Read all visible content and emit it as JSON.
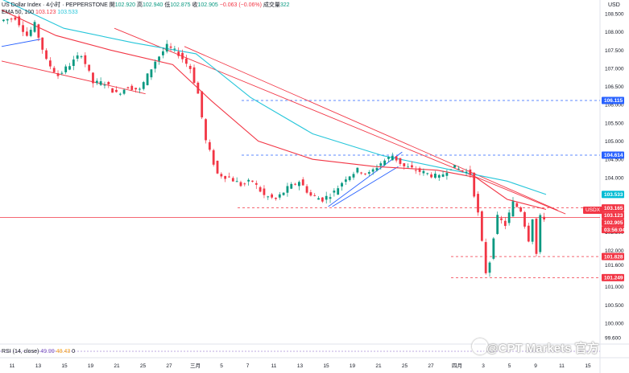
{
  "header": {
    "symbol": "US Dollar Index · 4小时 · PEPPERSTONE",
    "open_label": "開",
    "open": "102.920",
    "high_label": "高",
    "high": "102.940",
    "low_label": "低",
    "low": "102.875",
    "close_label": "收",
    "close": "102.905",
    "change": "−0.063 (−0.06%)",
    "volume_label": "成交量",
    "volume": "322",
    "ema_label": "EMA 50, 100",
    "ema50": "103.123",
    "ema100": "103.533",
    "rsi_label": "RSI (14, close)",
    "rsi_value": "49.99",
    "rsi_ma": "48.43",
    "rsi_zero": "0"
  },
  "axis": {
    "currency": "USD",
    "price_ticks": [
      "108.500",
      "108.000",
      "107.500",
      "107.000",
      "106.500",
      "106.000",
      "105.500",
      "105.000",
      "104.500",
      "104.000",
      "103.500",
      "103.000",
      "102.500",
      "102.000",
      "101.600",
      "101.000",
      "100.500",
      "100.000",
      "99.600"
    ],
    "time_ticks": [
      "11",
      "13",
      "15",
      "19",
      "21",
      "25",
      "27",
      "三月",
      "5",
      "7",
      "11",
      "13",
      "15",
      "19",
      "21",
      "25",
      "27",
      "四月",
      "3",
      "5",
      "9",
      "11",
      "15"
    ]
  },
  "price_tags": [
    {
      "label": "106.115",
      "color": "#2962ff",
      "value": 106.115
    },
    {
      "label": "104.614",
      "color": "#2962ff",
      "value": 104.614
    },
    {
      "label": "103.533",
      "color": "#00bcd4",
      "value": 103.533
    },
    {
      "label": "103.165",
      "color": "#f23645",
      "value": 103.165
    },
    {
      "label": "103.123",
      "color": "#f23645",
      "value": 103.123
    },
    {
      "label": "102.905",
      "color": "#f23645",
      "value": 102.905
    },
    {
      "label": "03:56:04",
      "color": "#f23645",
      "value": 102.905
    },
    {
      "label": "101.828",
      "color": "#f23645",
      "value": 101.828
    },
    {
      "label": "101.249",
      "color": "#f23645",
      "value": 101.249
    }
  ],
  "symbol_tag": "USDX",
  "watermark": "@CPT Markets 官方",
  "colors": {
    "up": "#089981",
    "down": "#f23645",
    "ema50": "#f23645",
    "ema100": "#26c6da",
    "channel": "#2962ff",
    "trend": "#f23645"
  },
  "chart_data": {
    "type": "candlestick",
    "timeframe": "4h",
    "ylim": [
      99.6,
      108.7
    ],
    "price_levels": [
      {
        "value": 106.115,
        "style": "dashed",
        "color": "#2962ff"
      },
      {
        "value": 104.614,
        "style": "dashed",
        "color": "#2962ff"
      },
      {
        "value": 103.165,
        "style": "dashed",
        "color": "#f23645"
      },
      {
        "value": 102.905,
        "style": "solid",
        "color": "#f23645"
      },
      {
        "value": 101.828,
        "style": "dashed",
        "color": "#f23645"
      },
      {
        "value": 101.249,
        "style": "dashed",
        "color": "#f23645"
      }
    ],
    "close_path": [
      {
        "t": 0,
        "v": 108.3
      },
      {
        "t": 4,
        "v": 108.4
      },
      {
        "t": 7,
        "v": 107.9
      },
      {
        "t": 9,
        "v": 108.2
      },
      {
        "t": 12,
        "v": 107.2
      },
      {
        "t": 15,
        "v": 106.8
      },
      {
        "t": 18,
        "v": 107.1
      },
      {
        "t": 21,
        "v": 107.4
      },
      {
        "t": 24,
        "v": 106.6
      },
      {
        "t": 27,
        "v": 106.6
      },
      {
        "t": 30,
        "v": 106.3
      },
      {
        "t": 33,
        "v": 106.5
      },
      {
        "t": 36,
        "v": 106.4
      },
      {
        "t": 40,
        "v": 107.2
      },
      {
        "t": 43,
        "v": 107.6
      },
      {
        "t": 46,
        "v": 107.4
      },
      {
        "t": 49,
        "v": 107.0
      },
      {
        "t": 51,
        "v": 106.3
      },
      {
        "t": 53,
        "v": 105.0
      },
      {
        "t": 56,
        "v": 104.1
      },
      {
        "t": 59,
        "v": 104.0
      },
      {
        "t": 62,
        "v": 103.8
      },
      {
        "t": 65,
        "v": 103.9
      },
      {
        "t": 68,
        "v": 103.5
      },
      {
        "t": 71,
        "v": 103.4
      },
      {
        "t": 74,
        "v": 103.7
      },
      {
        "t": 77,
        "v": 103.9
      },
      {
        "t": 80,
        "v": 103.5
      },
      {
        "t": 83,
        "v": 103.4
      },
      {
        "t": 86,
        "v": 103.6
      },
      {
        "t": 89,
        "v": 104.0
      },
      {
        "t": 92,
        "v": 104.2
      },
      {
        "t": 95,
        "v": 104.1
      },
      {
        "t": 98,
        "v": 104.4
      },
      {
        "t": 101,
        "v": 104.6
      },
      {
        "t": 104,
        "v": 104.3
      },
      {
        "t": 107,
        "v": 104.2
      },
      {
        "t": 110,
        "v": 104.1
      },
      {
        "t": 113,
        "v": 104.0
      },
      {
        "t": 116,
        "v": 104.3
      },
      {
        "t": 119,
        "v": 104.2
      },
      {
        "t": 121,
        "v": 104.1
      },
      {
        "t": 123,
        "v": 103.0
      },
      {
        "t": 124,
        "v": 102.2
      },
      {
        "t": 125,
        "v": 101.4
      },
      {
        "t": 126,
        "v": 101.7
      },
      {
        "t": 127,
        "v": 102.4
      },
      {
        "t": 128,
        "v": 102.9
      },
      {
        "t": 130,
        "v": 102.7
      },
      {
        "t": 132,
        "v": 103.3
      },
      {
        "t": 134,
        "v": 103.1
      },
      {
        "t": 136,
        "v": 102.3
      },
      {
        "t": 137,
        "v": 102.9
      },
      {
        "t": 138,
        "v": 101.9
      },
      {
        "t": 139,
        "v": 102.9
      },
      {
        "t": 140,
        "v": 102.9
      }
    ],
    "ema50_path": [
      {
        "t": 0,
        "v": 108.6
      },
      {
        "t": 14,
        "v": 107.9
      },
      {
        "t": 28,
        "v": 107.5
      },
      {
        "t": 44,
        "v": 107.1
      },
      {
        "t": 54,
        "v": 106.1
      },
      {
        "t": 66,
        "v": 105.0
      },
      {
        "t": 80,
        "v": 104.5
      },
      {
        "t": 96,
        "v": 104.3
      },
      {
        "t": 112,
        "v": 104.2
      },
      {
        "t": 122,
        "v": 104.0
      },
      {
        "t": 130,
        "v": 103.4
      },
      {
        "t": 140,
        "v": 103.123
      }
    ],
    "ema100_path": [
      {
        "t": 0,
        "v": 108.9
      },
      {
        "t": 16,
        "v": 108.1
      },
      {
        "t": 34,
        "v": 107.7
      },
      {
        "t": 50,
        "v": 107.4
      },
      {
        "t": 64,
        "v": 106.2
      },
      {
        "t": 80,
        "v": 105.2
      },
      {
        "t": 98,
        "v": 104.6
      },
      {
        "t": 116,
        "v": 104.2
      },
      {
        "t": 130,
        "v": 103.9
      },
      {
        "t": 140,
        "v": 103.533
      }
    ],
    "trendlines": [
      {
        "color": "#f23645",
        "from": {
          "t": 29,
          "v": 108.1
        },
        "to": {
          "t": 145,
          "v": 103.0
        }
      },
      {
        "color": "#f23645",
        "from": {
          "t": 47,
          "v": 107.6
        },
        "to": {
          "t": 143,
          "v": 103.1
        }
      },
      {
        "color": "#f23645",
        "from": {
          "t": 0,
          "v": 107.2
        },
        "to": {
          "t": 37,
          "v": 106.3
        }
      },
      {
        "color": "#2962ff",
        "from": {
          "t": 0,
          "v": 107.6
        },
        "to": {
          "t": 10,
          "v": 107.8
        }
      },
      {
        "color": "#2962ff",
        "from": {
          "t": 84,
          "v": 103.2
        },
        "to": {
          "t": 103,
          "v": 104.7
        }
      },
      {
        "color": "#2962ff",
        "from": {
          "t": 85,
          "v": 103.2
        },
        "to": {
          "t": 102,
          "v": 104.3
        }
      }
    ]
  }
}
